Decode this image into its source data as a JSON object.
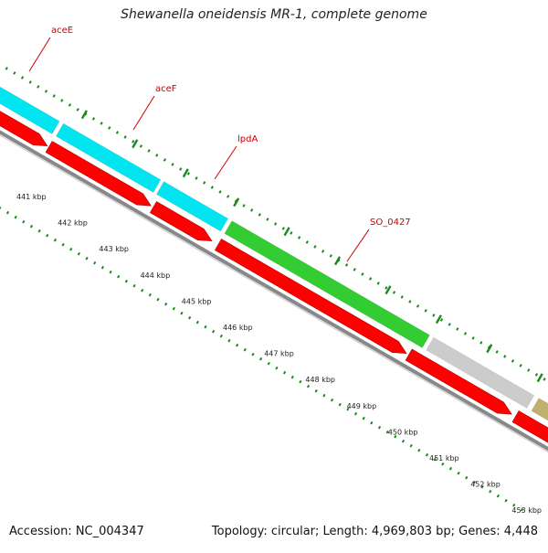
{
  "title": "Shewanella oneidensis MR-1, complete genome",
  "footer": {
    "accession": "Accession: NC_004347",
    "summary": "Topology: circular; Length: 4,969,803 bp; Genes: 4,448"
  },
  "genes": [
    {
      "name": "aceE",
      "color": "#00e5f0"
    },
    {
      "name": "aceF",
      "color": "#00e5f0"
    },
    {
      "name": "lpdA",
      "color": "#00e5f0"
    },
    {
      "name": "SO_0427",
      "color": "#33cc33"
    },
    {
      "name": "",
      "color": "#cccccc"
    },
    {
      "name": "",
      "color": "#bfb070"
    }
  ],
  "scale_labels": [
    "441 kbp",
    "442 kbp",
    "443 kbp",
    "444 kbp",
    "445 kbp",
    "446 kbp",
    "447 kbp",
    "448 kbp",
    "449 kbp",
    "450 kbp",
    "451 kbp",
    "452 kbp",
    "453 kbp"
  ],
  "colors": {
    "cds_strand": "#ff0000",
    "backbone": "#888888",
    "tick": "#1a8a1a",
    "label": "#cc0000"
  }
}
